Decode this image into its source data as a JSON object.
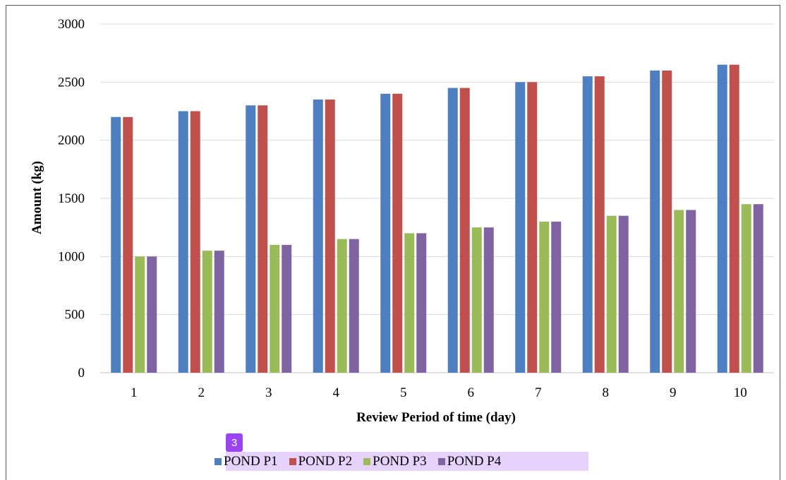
{
  "badge": "3",
  "chart_data": {
    "type": "bar",
    "title": "",
    "xlabel": "Review Period of time (day)",
    "ylabel": "Amount (kg)",
    "categories": [
      "1",
      "2",
      "3",
      "4",
      "5",
      "6",
      "7",
      "8",
      "9",
      "10"
    ],
    "ylim": [
      0,
      3000
    ],
    "yticks": [
      "0",
      "500",
      "1000",
      "1500",
      "2000",
      "2500",
      "3000"
    ],
    "grid": true,
    "legend_position": "bottom",
    "series": [
      {
        "name": "POND P1",
        "color": "#4e7fc1",
        "values": [
          2200,
          2250,
          2300,
          2350,
          2400,
          2450,
          2500,
          2550,
          2600,
          2650
        ]
      },
      {
        "name": "POND P2",
        "color": "#c0504d",
        "values": [
          2200,
          2250,
          2300,
          2350,
          2400,
          2450,
          2500,
          2550,
          2600,
          2650
        ]
      },
      {
        "name": "POND P3",
        "color": "#9bbb59",
        "values": [
          1000,
          1050,
          1100,
          1150,
          1200,
          1250,
          1300,
          1350,
          1400,
          1450
        ]
      },
      {
        "name": "POND P4",
        "color": "#8064a2",
        "values": [
          1000,
          1050,
          1100,
          1150,
          1200,
          1250,
          1300,
          1350,
          1400,
          1450
        ]
      }
    ]
  }
}
